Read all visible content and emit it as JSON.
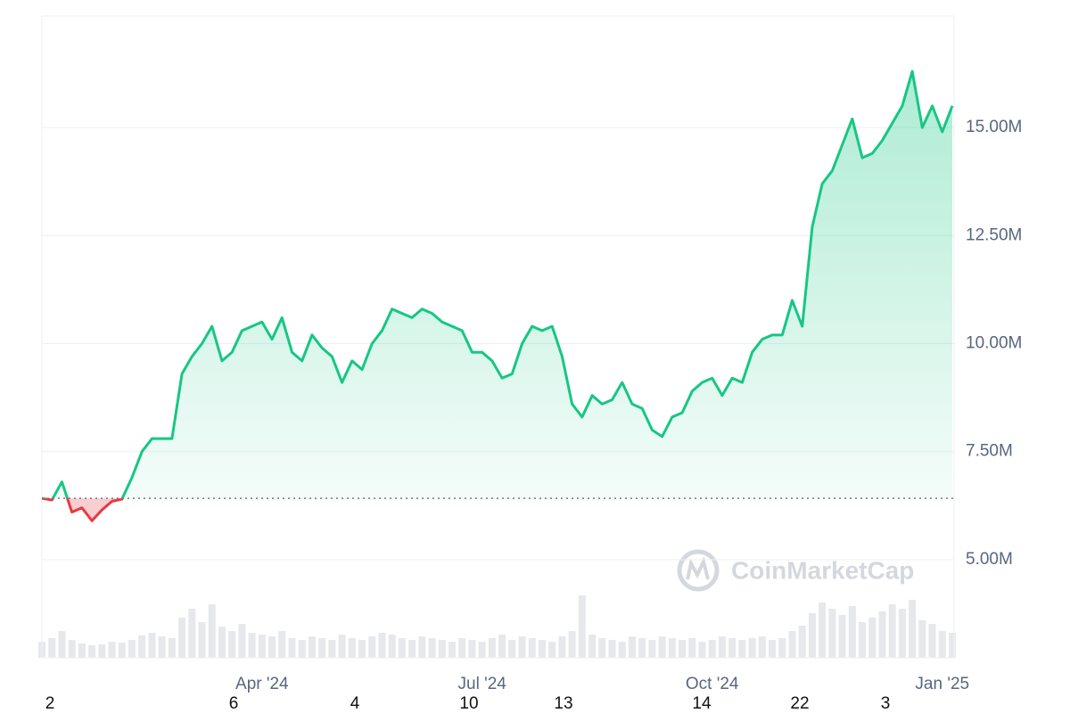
{
  "chart_data": {
    "type": "line",
    "categories": [
      null,
      null,
      null,
      null,
      null,
      null,
      null,
      null,
      null,
      null,
      null,
      null,
      null,
      null,
      null,
      null,
      null,
      null,
      null,
      null,
      null,
      null,
      "Apr '24",
      null,
      null,
      null,
      null,
      null,
      null,
      null,
      null,
      null,
      null,
      null,
      null,
      null,
      null,
      null,
      null,
      null,
      null,
      null,
      null,
      null,
      "Jul '24",
      null,
      null,
      null,
      null,
      null,
      null,
      null,
      null,
      null,
      null,
      null,
      null,
      null,
      null,
      null,
      null,
      null,
      null,
      null,
      null,
      null,
      null,
      "Oct '24",
      null,
      null,
      null,
      null,
      null,
      null,
      null,
      null,
      null,
      null,
      null,
      null,
      null,
      null,
      null,
      null,
      null,
      null,
      null,
      null,
      null,
      null,
      "Jan '25",
      null
    ],
    "values": [
      6.42,
      6.38,
      6.8,
      6.1,
      6.2,
      5.9,
      6.15,
      6.35,
      6.4,
      6.9,
      7.5,
      7.8,
      7.8,
      7.8,
      9.3,
      9.7,
      10.0,
      10.4,
      9.6,
      9.8,
      10.3,
      10.4,
      10.5,
      10.1,
      10.6,
      9.8,
      9.6,
      10.2,
      9.9,
      9.7,
      9.1,
      9.6,
      9.4,
      10.0,
      10.3,
      10.8,
      10.7,
      10.6,
      10.8,
      10.7,
      10.5,
      10.4,
      10.3,
      9.8,
      9.8,
      9.6,
      9.2,
      9.3,
      10.0,
      10.4,
      10.3,
      10.4,
      9.7,
      8.6,
      8.3,
      8.8,
      8.6,
      8.7,
      9.1,
      8.6,
      8.5,
      8.0,
      7.85,
      8.3,
      8.4,
      8.9,
      9.1,
      9.2,
      8.8,
      9.2,
      9.1,
      9.8,
      10.1,
      10.2,
      10.2,
      11.0,
      10.4,
      12.7,
      13.7,
      14.0,
      14.6,
      15.2,
      14.3,
      14.4,
      14.7,
      15.1,
      15.5,
      16.3,
      15.0,
      15.5,
      14.9,
      15.5
    ],
    "volume": [
      18,
      22,
      30,
      20,
      16,
      14,
      15,
      18,
      17,
      20,
      25,
      28,
      24,
      22,
      45,
      55,
      40,
      60,
      35,
      30,
      38,
      28,
      26,
      24,
      30,
      22,
      20,
      24,
      22,
      20,
      26,
      22,
      20,
      24,
      28,
      26,
      22,
      20,
      24,
      22,
      20,
      18,
      22,
      20,
      18,
      22,
      26,
      20,
      24,
      22,
      20,
      18,
      24,
      30,
      70,
      26,
      22,
      20,
      18,
      24,
      22,
      20,
      24,
      22,
      20,
      22,
      18,
      20,
      24,
      22,
      20,
      22,
      24,
      20,
      22,
      30,
      36,
      50,
      62,
      55,
      48,
      58,
      40,
      45,
      52,
      60,
      55,
      65,
      42,
      38,
      30,
      28
    ],
    "up_color": "#16c784",
    "down_color": "#ea3943",
    "ylim": [
      2.73,
      17.58
    ],
    "yticks": [
      {
        "value": 5,
        "label": "5.00M"
      },
      {
        "value": 7.5,
        "label": "7.50M"
      },
      {
        "value": 10,
        "label": "10.00M"
      },
      {
        "value": 12.5,
        "label": "12.50M"
      },
      {
        "value": 15,
        "label": "15.00M"
      }
    ],
    "grid": true,
    "day_labels": [
      "2",
      "6",
      "4",
      "10",
      "13",
      "14",
      "22",
      "3"
    ],
    "watermark": "CoinMarketCap"
  }
}
